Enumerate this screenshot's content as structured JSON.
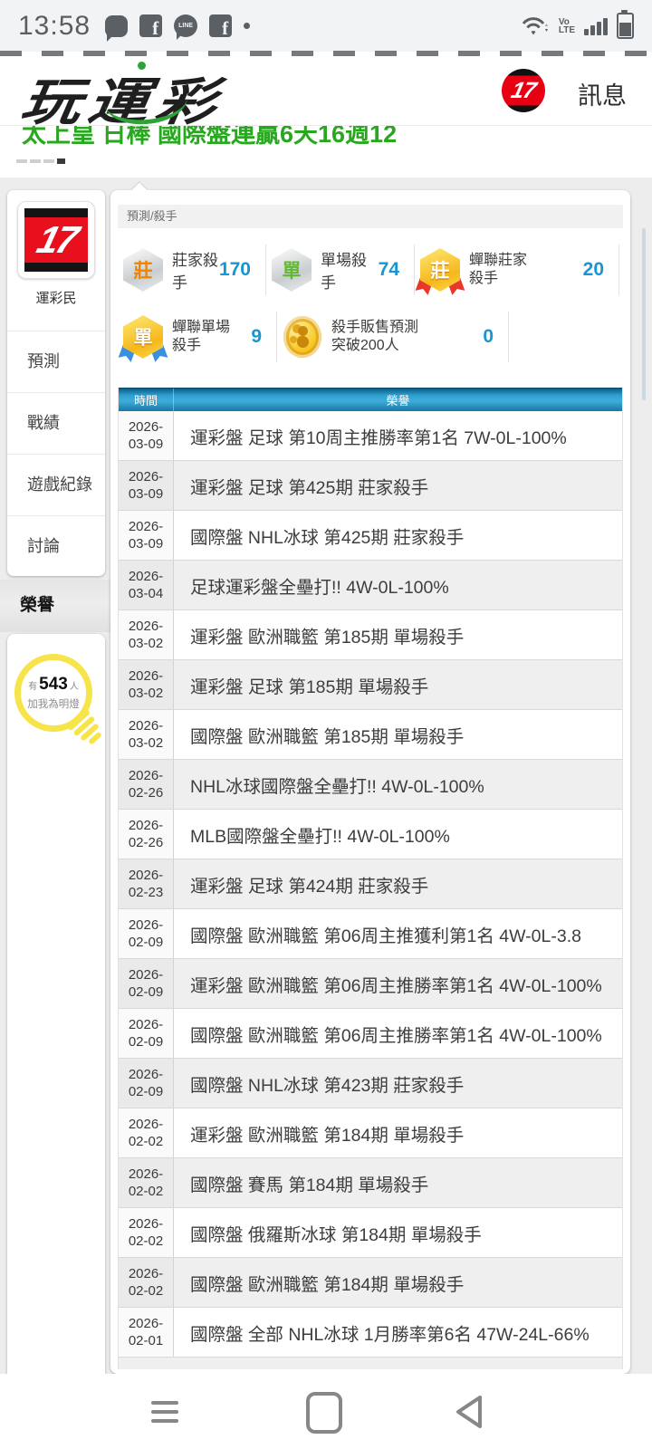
{
  "status_bar": {
    "time": "13:58",
    "notification_icons": [
      "chat-bubble",
      "facebook",
      "line",
      "facebook",
      "dot"
    ],
    "volte_line1": "Vo",
    "volte_line2": "LTE"
  },
  "header": {
    "logo_text": "玩運彩",
    "site_badge": "17",
    "messages_label": "訊息"
  },
  "banner": {
    "text": "太上皇 日棒 國際盤連贏6天16週12",
    "indicator_count": 4,
    "active_indicator": 3
  },
  "sidebar": {
    "avatar_text": "17",
    "username": "運彩民",
    "items": [
      {
        "label": "預測"
      },
      {
        "label": "戰績"
      },
      {
        "label": "遊戲紀錄"
      },
      {
        "label": "討論"
      },
      {
        "label": "榮譽",
        "active": true
      }
    ],
    "beacon": {
      "prefix": "有",
      "count": "543",
      "suffix": "人",
      "line2": "加我為明燈",
      "bulb_color": "#f6e44a"
    }
  },
  "main": {
    "breadcrumb": "預測/殺手",
    "accent_blue": "#1796d3",
    "badges": [
      {
        "row": 1,
        "type": "hex-silver",
        "char": "莊",
        "char_color": "#f08200",
        "label_lines": [
          "莊家殺手"
        ],
        "count": "170"
      },
      {
        "row": 1,
        "type": "hex-silver",
        "char": "單",
        "char_color": "#61b832",
        "label_lines": [
          "單場殺手"
        ],
        "count": "74"
      },
      {
        "row": 1,
        "type": "hex-gold",
        "char": "莊",
        "char_color": "#ffffff",
        "ribbon_color": "#e8372c",
        "label_lines": [
          "蟬聯莊家",
          "殺手"
        ],
        "count": "20"
      },
      {
        "row": 2,
        "type": "hex-gold",
        "char": "單",
        "char_color": "#ffffff",
        "ribbon_color": "#3b8fe0",
        "label_lines": [
          "蟬聯單場",
          "殺手"
        ],
        "count": "9"
      },
      {
        "row": 2,
        "type": "coin",
        "label_lines": [
          "殺手販售預測",
          "突破200人"
        ],
        "count": "0"
      }
    ],
    "table": {
      "header_color": "#2e9fce",
      "columns": [
        "時間",
        "榮譽"
      ],
      "rows": [
        {
          "date_top": "2026-",
          "date_bottom": "03-09",
          "honor": "運彩盤 足球 第10周主推勝率第1名 7W-0L-100%"
        },
        {
          "date_top": "2026-",
          "date_bottom": "03-09",
          "honor": "運彩盤 足球 第425期 莊家殺手"
        },
        {
          "date_top": "2026-",
          "date_bottom": "03-09",
          "honor": "國際盤 NHL冰球 第425期 莊家殺手"
        },
        {
          "date_top": "2026-",
          "date_bottom": "03-04",
          "honor": "足球運彩盤全壘打!! 4W-0L-100%"
        },
        {
          "date_top": "2026-",
          "date_bottom": "03-02",
          "honor": "運彩盤 歐洲職籃 第185期 單場殺手"
        },
        {
          "date_top": "2026-",
          "date_bottom": "03-02",
          "honor": "運彩盤 足球 第185期 單場殺手"
        },
        {
          "date_top": "2026-",
          "date_bottom": "03-02",
          "honor": "國際盤 歐洲職籃 第185期 單場殺手"
        },
        {
          "date_top": "2026-",
          "date_bottom": "02-26",
          "honor": "NHL冰球國際盤全壘打!! 4W-0L-100%"
        },
        {
          "date_top": "2026-",
          "date_bottom": "02-26",
          "honor": "MLB國際盤全壘打!! 4W-0L-100%"
        },
        {
          "date_top": "2026-",
          "date_bottom": "02-23",
          "honor": "運彩盤 足球 第424期 莊家殺手"
        },
        {
          "date_top": "2026-",
          "date_bottom": "02-09",
          "honor": "國際盤 歐洲職籃 第06周主推獲利第1名 4W-0L-3.8"
        },
        {
          "date_top": "2026-",
          "date_bottom": "02-09",
          "honor": "運彩盤 歐洲職籃 第06周主推勝率第1名 4W-0L-100%"
        },
        {
          "date_top": "2026-",
          "date_bottom": "02-09",
          "honor": "國際盤 歐洲職籃 第06周主推勝率第1名 4W-0L-100%"
        },
        {
          "date_top": "2026-",
          "date_bottom": "02-09",
          "honor": "國際盤 NHL冰球 第423期 莊家殺手"
        },
        {
          "date_top": "2026-",
          "date_bottom": "02-02",
          "honor": "運彩盤 歐洲職籃 第184期 單場殺手"
        },
        {
          "date_top": "2026-",
          "date_bottom": "02-02",
          "honor": "國際盤 賽馬 第184期 單場殺手"
        },
        {
          "date_top": "2026-",
          "date_bottom": "02-02",
          "honor": "國際盤 俄羅斯冰球 第184期 單場殺手"
        },
        {
          "date_top": "2026-",
          "date_bottom": "02-02",
          "honor": "國際盤 歐洲職籃 第184期 單場殺手"
        },
        {
          "date_top": "2026-",
          "date_bottom": "02-01",
          "honor": "國際盤 全部 NHL冰球 1月勝率第6名 47W-24L-66%"
        }
      ]
    }
  },
  "nav_bar": {
    "icons": [
      "recent-apps",
      "home",
      "back"
    ]
  }
}
